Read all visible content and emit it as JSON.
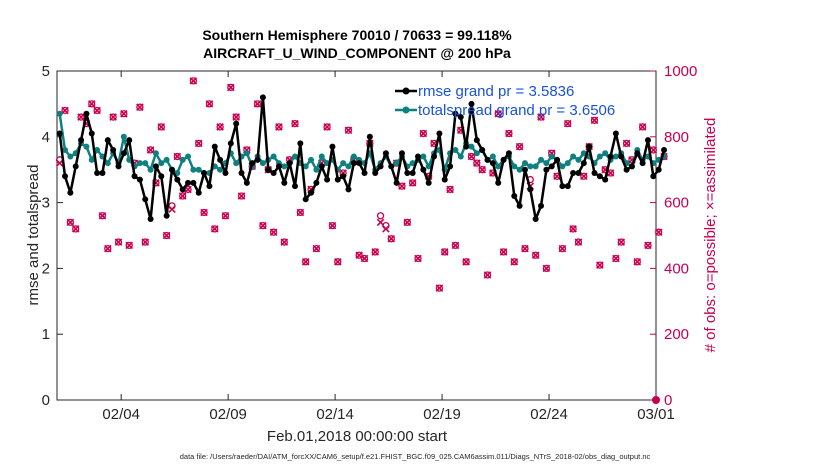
{
  "chart_data": {
    "type": "line",
    "title_line1": "Southern Hemisphere 70010 / 70633 = 99.118%",
    "title_line2": "AIRCRAFT_U_WIND_COMPONENT @ 200 hPa",
    "ylabel_left": "rmse and totalspread",
    "ylabel_right": "# of obs: o=possible; ×=assimilated",
    "xlabel": "Feb.01,2018 00:00:00 start",
    "footer": "data file: /Users/raeder/DAI/ATM_forcXX/CAM6_setup/f.e21.FHIST_BGC.f09_025.CAM6assim.011/Diags_NTrS_2018-02/obs_diag_output.nc",
    "xlim": [
      1,
      29
    ],
    "ylim_left": [
      0,
      5
    ],
    "ylim_right": [
      0,
      1000
    ],
    "left_ticks": [
      "0",
      "1",
      "2",
      "3",
      "4",
      "5"
    ],
    "right_ticks": [
      "0",
      "200",
      "400",
      "600",
      "800",
      "1000"
    ],
    "x_ticks": [
      {
        "x": 4,
        "label": "02/04"
      },
      {
        "x": 9,
        "label": "02/09"
      },
      {
        "x": 14,
        "label": "02/14"
      },
      {
        "x": 19,
        "label": "02/19"
      },
      {
        "x": 24,
        "label": "02/24"
      },
      {
        "x": 29,
        "label": "03/01"
      }
    ],
    "colors": {
      "rmse": "#000000",
      "spread": "#0e8080",
      "obs": "#c8004f",
      "legend_text": "#1a52d6"
    },
    "series": [
      {
        "name": "rmse",
        "legend": "rmse grand pr = 3.5836",
        "x_start": 1.125,
        "x_step": 0.25,
        "values": [
          4.05,
          3.4,
          3.15,
          3.55,
          3.95,
          4.35,
          4.05,
          3.45,
          3.45,
          3.95,
          3.8,
          3.55,
          3.75,
          3.95,
          3.4,
          3.35,
          3.05,
          2.75,
          3.55,
          3.4,
          2.8,
          3.5,
          3.35,
          3.2,
          3.3,
          3.3,
          3.15,
          3.45,
          3.25,
          3.85,
          3.65,
          3.45,
          3.9,
          4.2,
          3.45,
          3.3,
          3.6,
          3.65,
          4.6,
          3.5,
          3.45,
          3.55,
          3.3,
          3.6,
          3.25,
          3.9,
          3.05,
          3.15,
          3.3,
          3.55,
          3.35,
          3.85,
          3.35,
          3.4,
          3.2,
          3.6,
          3.6,
          3.45,
          4.0,
          3.45,
          3.55,
          3.75,
          3.55,
          3.3,
          3.75,
          3.45,
          3.45,
          3.7,
          3.5,
          3.3,
          3.7,
          4.05,
          3.35,
          3.55,
          4.35,
          4.3,
          3.85,
          4.5,
          3.95,
          3.8,
          3.65,
          3.6,
          3.3,
          3.65,
          3.75,
          3.1,
          2.95,
          3.5,
          3.2,
          2.75,
          2.95,
          3.5,
          3.55,
          3.65,
          3.25,
          3.25,
          3.45,
          3.45,
          3.6,
          3.85,
          3.45,
          3.4,
          3.35,
          3.7,
          4.05,
          3.7,
          3.5,
          3.55,
          3.75,
          3.6,
          3.95,
          3.4,
          3.5,
          3.8
        ]
      },
      {
        "name": "totalspread",
        "legend": "totalspread grand pr = 3.6506",
        "x_start": 1.125,
        "x_step": 0.25,
        "values": [
          4.35,
          3.8,
          3.7,
          3.75,
          3.9,
          3.85,
          3.65,
          3.8,
          3.7,
          3.6,
          3.75,
          3.6,
          4.0,
          3.65,
          3.55,
          3.6,
          3.6,
          3.5,
          3.75,
          3.6,
          3.65,
          3.5,
          3.45,
          3.65,
          3.7,
          3.5,
          3.5,
          3.45,
          3.45,
          3.55,
          3.5,
          3.6,
          3.75,
          3.6,
          3.7,
          3.75,
          3.55,
          3.7,
          3.6,
          3.65,
          3.7,
          3.6,
          3.55,
          3.6,
          3.7,
          3.6,
          3.55,
          3.65,
          3.5,
          3.7,
          3.6,
          3.65,
          3.5,
          3.6,
          3.55,
          3.7,
          3.65,
          3.6,
          3.75,
          3.5,
          3.6,
          3.7,
          3.55,
          3.6,
          3.7,
          3.55,
          3.6,
          3.65,
          3.7,
          3.55,
          3.75,
          3.8,
          3.5,
          3.75,
          3.8,
          3.7,
          3.9,
          3.85,
          3.75,
          3.8,
          3.65,
          3.7,
          3.55,
          3.65,
          3.7,
          3.55,
          3.5,
          3.6,
          3.55,
          3.55,
          3.65,
          3.6,
          3.7,
          3.65,
          3.55,
          3.6,
          3.7,
          3.65,
          3.75,
          3.7,
          3.6,
          3.7,
          3.75,
          3.65,
          3.7,
          3.75,
          3.6,
          3.55,
          3.8,
          3.65,
          3.7,
          3.6,
          3.65,
          3.7
        ]
      },
      {
        "name": "obs_possible",
        "axis": "right",
        "marker": "o",
        "x_start": 1.125,
        "x_step": 0.25,
        "values": [
          730,
          880,
          540,
          520,
          860,
          840,
          900,
          880,
          560,
          460,
          860,
          480,
          870,
          470,
          720,
          890,
          480,
          760,
          660,
          830,
          500,
          590,
          740,
          620,
          640,
          970,
          780,
          570,
          900,
          520,
          830,
          560,
          950,
          860,
          620,
          760,
          710,
          900,
          530,
          700,
          510,
          830,
          480,
          730,
          840,
          570,
          420,
          640,
          460,
          720,
          830,
          530,
          420,
          690,
          820,
          730,
          440,
          430,
          780,
          450,
          560,
          530,
          490,
          720,
          650,
          540,
          660,
          430,
          810,
          680,
          780,
          340,
          450,
          640,
          470,
          820,
          420,
          740,
          720,
          700,
          380,
          690,
          870,
          450,
          810,
          420,
          770,
          460,
          670,
          440,
          860,
          400,
          750,
          680,
          460,
          840,
          520,
          480,
          680,
          770,
          850,
          410,
          700,
          690,
          430,
          480,
          780,
          730,
          420,
          830,
          470,
          760,
          510,
          740
        ]
      },
      {
        "name": "obs_assimilated",
        "axis": "right",
        "marker": "x",
        "x_start": 1.125,
        "x_step": 0.25,
        "values": [
          720,
          880,
          540,
          520,
          860,
          840,
          900,
          880,
          560,
          460,
          860,
          480,
          870,
          470,
          720,
          890,
          480,
          760,
          660,
          830,
          500,
          580,
          740,
          620,
          640,
          970,
          780,
          570,
          900,
          520,
          830,
          560,
          950,
          860,
          620,
          760,
          710,
          900,
          530,
          700,
          510,
          830,
          480,
          730,
          840,
          570,
          420,
          640,
          460,
          720,
          830,
          530,
          420,
          690,
          820,
          730,
          440,
          430,
          780,
          450,
          540,
          520,
          490,
          720,
          650,
          540,
          660,
          430,
          810,
          680,
          780,
          340,
          450,
          640,
          470,
          820,
          420,
          740,
          720,
          700,
          380,
          690,
          870,
          450,
          810,
          420,
          770,
          460,
          650,
          440,
          860,
          400,
          750,
          680,
          460,
          840,
          520,
          480,
          680,
          770,
          850,
          410,
          700,
          690,
          430,
          480,
          780,
          730,
          420,
          830,
          470,
          760,
          510,
          740
        ]
      }
    ]
  }
}
